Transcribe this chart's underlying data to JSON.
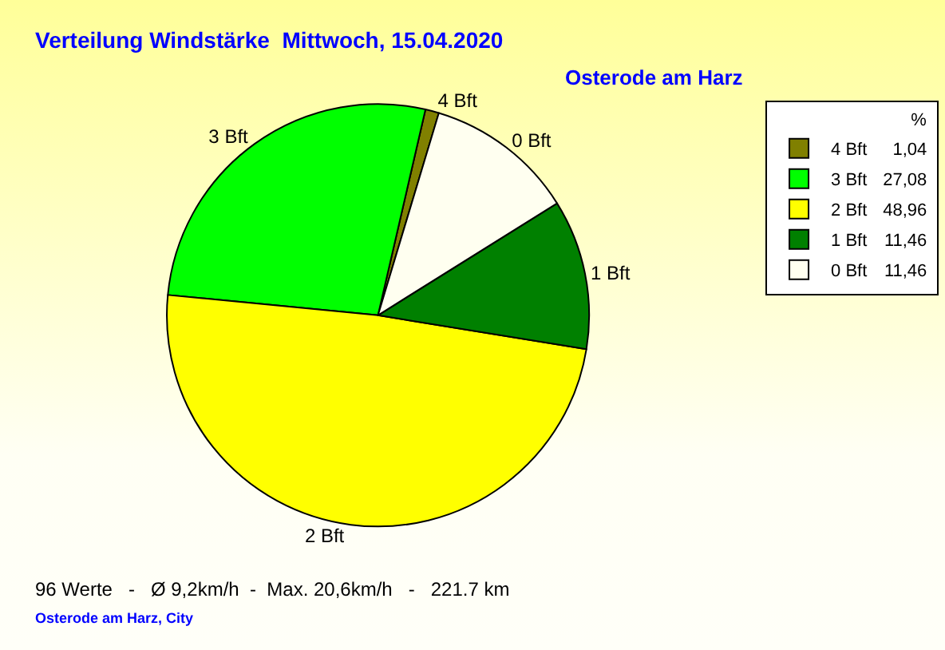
{
  "chart_data": {
    "type": "pie",
    "title": "Verteilung Windstärke  Mittwoch, 15.04.2020",
    "subtitle": "Osterode am Harz",
    "categories": [
      "4 Bft",
      "3 Bft",
      "2 Bft",
      "1 Bft",
      "0 Bft"
    ],
    "values": [
      1.04,
      27.08,
      48.96,
      11.46,
      11.46
    ],
    "value_labels": [
      "1,04",
      "27,08",
      "48,96",
      "11,46",
      "11,46"
    ],
    "colors": [
      "#808000",
      "#00ff00",
      "#ffff00",
      "#008000",
      "#fffff0"
    ],
    "legend_title": "%",
    "legend": "top right",
    "annotations": [
      "96 Werte   -   Ø 9,2km/h  -  Max. 20,6km/h   -   221.7 km",
      "Osterode am Harz, City"
    ]
  }
}
